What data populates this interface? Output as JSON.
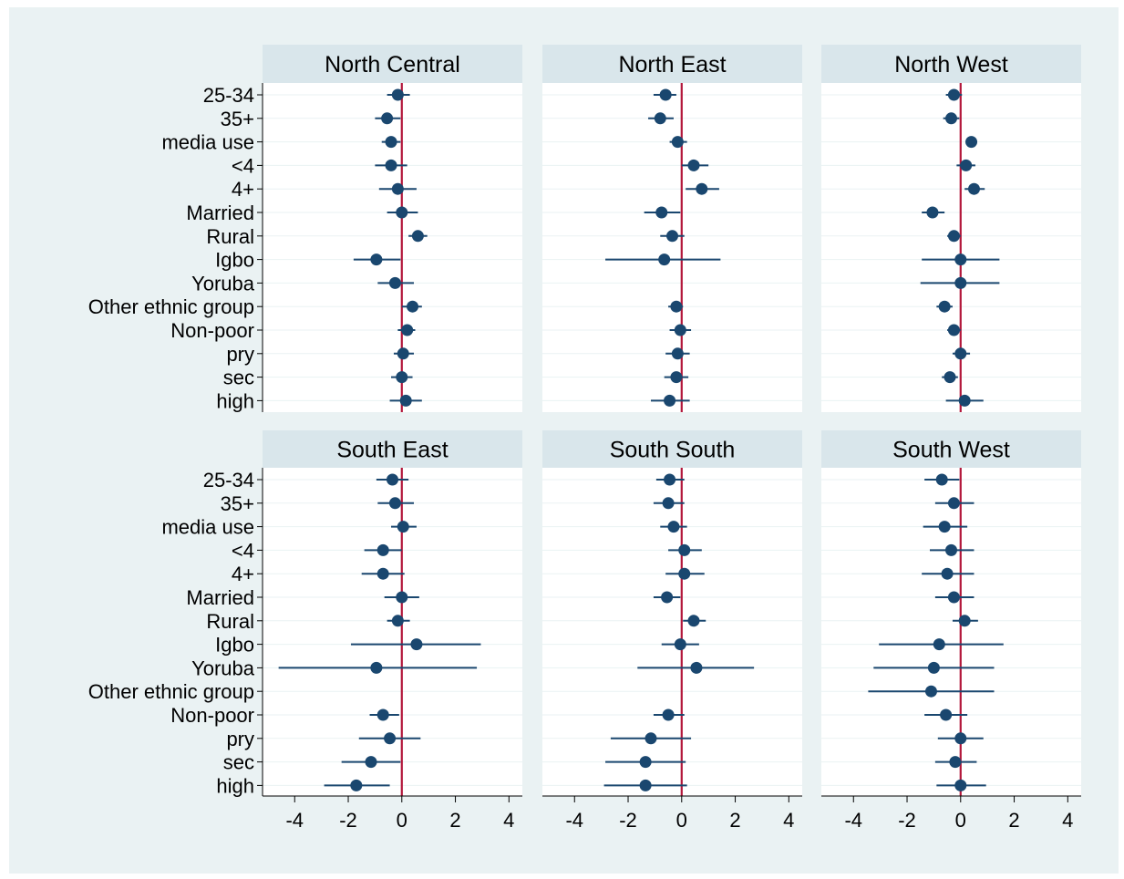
{
  "chart_data": {
    "type": "scatter",
    "categories": [
      "25-34",
      "35+",
      "media use",
      "<4",
      "4+",
      "Married",
      "Rural",
      "Igbo",
      "Yoruba",
      "Other ethnic group",
      "Non-poor",
      "pry",
      "sec",
      "high"
    ],
    "x_ticks": [
      -4,
      -2,
      0,
      2,
      4
    ],
    "xlim": [
      -5.2,
      4.5
    ],
    "reference_line": 0,
    "colors": {
      "point": "#1a476f",
      "ci": "#1a476f",
      "reference": "#b3173b",
      "strip": "#d9e6eb",
      "background": "#eaf2f3"
    },
    "panels": [
      {
        "name": "North Central",
        "points": [
          {
            "est": -0.15,
            "lo": -0.55,
            "hi": 0.3
          },
          {
            "est": -0.55,
            "lo": -1.0,
            "hi": -0.05
          },
          {
            "est": -0.4,
            "lo": -0.75,
            "hi": -0.05
          },
          {
            "est": -0.4,
            "lo": -1.0,
            "hi": 0.2
          },
          {
            "est": -0.15,
            "lo": -0.85,
            "hi": 0.55
          },
          {
            "est": 0.0,
            "lo": -0.55,
            "hi": 0.6
          },
          {
            "est": 0.6,
            "lo": 0.25,
            "hi": 0.95
          },
          {
            "est": -0.95,
            "lo": -1.8,
            "hi": -0.05
          },
          {
            "est": -0.25,
            "lo": -0.9,
            "hi": 0.45
          },
          {
            "est": 0.4,
            "lo": 0.0,
            "hi": 0.75
          },
          {
            "est": 0.2,
            "lo": -0.15,
            "hi": 0.5
          },
          {
            "est": 0.05,
            "lo": -0.3,
            "hi": 0.45
          },
          {
            "est": 0.0,
            "lo": -0.4,
            "hi": 0.4
          },
          {
            "est": 0.15,
            "lo": -0.45,
            "hi": 0.75
          }
        ]
      },
      {
        "name": "North East",
        "points": [
          {
            "est": -0.6,
            "lo": -1.05,
            "hi": -0.2
          },
          {
            "est": -0.8,
            "lo": -1.25,
            "hi": -0.3
          },
          {
            "est": -0.15,
            "lo": -0.45,
            "hi": 0.2
          },
          {
            "est": 0.45,
            "lo": 0.0,
            "hi": 1.0
          },
          {
            "est": 0.75,
            "lo": 0.15,
            "hi": 1.4
          },
          {
            "est": -0.75,
            "lo": -1.4,
            "hi": -0.05
          },
          {
            "est": -0.35,
            "lo": -0.8,
            "hi": 0.1
          },
          {
            "est": -0.65,
            "lo": -2.85,
            "hi": 1.45
          },
          null,
          {
            "est": -0.2,
            "lo": -0.5,
            "hi": 0.05
          },
          {
            "est": -0.05,
            "lo": -0.45,
            "hi": 0.35
          },
          {
            "est": -0.15,
            "lo": -0.6,
            "hi": 0.3
          },
          {
            "est": -0.2,
            "lo": -0.65,
            "hi": 0.25
          },
          {
            "est": -0.45,
            "lo": -1.15,
            "hi": 0.3
          }
        ]
      },
      {
        "name": "North West",
        "points": [
          {
            "est": -0.25,
            "lo": -0.55,
            "hi": 0.05
          },
          {
            "est": -0.35,
            "lo": -0.65,
            "hi": -0.05
          },
          {
            "est": 0.4,
            "lo": 0.25,
            "hi": 0.55
          },
          {
            "est": 0.2,
            "lo": -0.15,
            "hi": 0.55
          },
          {
            "est": 0.5,
            "lo": 0.15,
            "hi": 0.9
          },
          {
            "est": -1.05,
            "lo": -1.45,
            "hi": -0.6
          },
          {
            "est": -0.25,
            "lo": -0.5,
            "hi": 0.0
          },
          {
            "est": 0.0,
            "lo": -1.45,
            "hi": 1.45
          },
          {
            "est": 0.0,
            "lo": -1.5,
            "hi": 1.45
          },
          {
            "est": -0.6,
            "lo": -0.9,
            "hi": -0.3
          },
          {
            "est": -0.25,
            "lo": -0.5,
            "hi": 0.0
          },
          {
            "est": 0.0,
            "lo": -0.3,
            "hi": 0.35
          },
          {
            "est": -0.4,
            "lo": -0.7,
            "hi": -0.1
          },
          {
            "est": 0.15,
            "lo": -0.55,
            "hi": 0.85
          }
        ]
      },
      {
        "name": "South East",
        "points": [
          {
            "est": -0.35,
            "lo": -0.95,
            "hi": 0.25
          },
          {
            "est": -0.25,
            "lo": -0.9,
            "hi": 0.45
          },
          {
            "est": 0.05,
            "lo": -0.4,
            "hi": 0.55
          },
          {
            "est": -0.7,
            "lo": -1.4,
            "hi": 0.0
          },
          {
            "est": -0.7,
            "lo": -1.5,
            "hi": 0.1
          },
          {
            "est": 0.0,
            "lo": -0.65,
            "hi": 0.65
          },
          {
            "est": -0.15,
            "lo": -0.55,
            "hi": 0.3
          },
          {
            "est": 0.55,
            "lo": -1.9,
            "hi": 2.95
          },
          {
            "est": -0.95,
            "lo": -4.6,
            "hi": 2.8
          },
          null,
          {
            "est": -0.7,
            "lo": -1.2,
            "hi": -0.1
          },
          {
            "est": -0.45,
            "lo": -1.6,
            "hi": 0.7
          },
          {
            "est": -1.15,
            "lo": -2.25,
            "hi": -0.05
          },
          {
            "est": -1.7,
            "lo": -2.9,
            "hi": -0.45
          }
        ]
      },
      {
        "name": "South South",
        "points": [
          {
            "est": -0.45,
            "lo": -0.95,
            "hi": 0.1
          },
          {
            "est": -0.5,
            "lo": -1.05,
            "hi": 0.1
          },
          {
            "est": -0.3,
            "lo": -0.8,
            "hi": 0.2
          },
          {
            "est": 0.1,
            "lo": -0.5,
            "hi": 0.75
          },
          {
            "est": 0.1,
            "lo": -0.6,
            "hi": 0.85
          },
          {
            "est": -0.55,
            "lo": -1.05,
            "hi": -0.05
          },
          {
            "est": 0.45,
            "lo": 0.05,
            "hi": 0.9
          },
          {
            "est": -0.05,
            "lo": -0.75,
            "hi": 0.65
          },
          {
            "est": 0.55,
            "lo": -1.65,
            "hi": 2.7
          },
          null,
          {
            "est": -0.5,
            "lo": -1.05,
            "hi": 0.1
          },
          {
            "est": -1.15,
            "lo": -2.65,
            "hi": 0.35
          },
          {
            "est": -1.35,
            "lo": -2.85,
            "hi": 0.15
          },
          {
            "est": -1.35,
            "lo": -2.9,
            "hi": 0.2
          }
        ]
      },
      {
        "name": "South West",
        "points": [
          {
            "est": -0.7,
            "lo": -1.35,
            "hi": -0.05
          },
          {
            "est": -0.25,
            "lo": -0.95,
            "hi": 0.5
          },
          {
            "est": -0.6,
            "lo": -1.4,
            "hi": 0.25
          },
          {
            "est": -0.35,
            "lo": -1.15,
            "hi": 0.5
          },
          {
            "est": -0.5,
            "lo": -1.45,
            "hi": 0.5
          },
          {
            "est": -0.25,
            "lo": -0.95,
            "hi": 0.5
          },
          {
            "est": 0.15,
            "lo": -0.3,
            "hi": 0.65
          },
          {
            "est": -0.8,
            "lo": -3.05,
            "hi": 1.6
          },
          {
            "est": -1.0,
            "lo": -3.25,
            "hi": 1.25
          },
          {
            "est": -1.1,
            "lo": -3.45,
            "hi": 1.25
          },
          {
            "est": -0.55,
            "lo": -1.35,
            "hi": 0.25
          },
          {
            "est": 0.0,
            "lo": -0.85,
            "hi": 0.85
          },
          {
            "est": -0.2,
            "lo": -0.95,
            "hi": 0.6
          },
          {
            "est": 0.0,
            "lo": -0.9,
            "hi": 0.95
          }
        ]
      }
    ]
  }
}
